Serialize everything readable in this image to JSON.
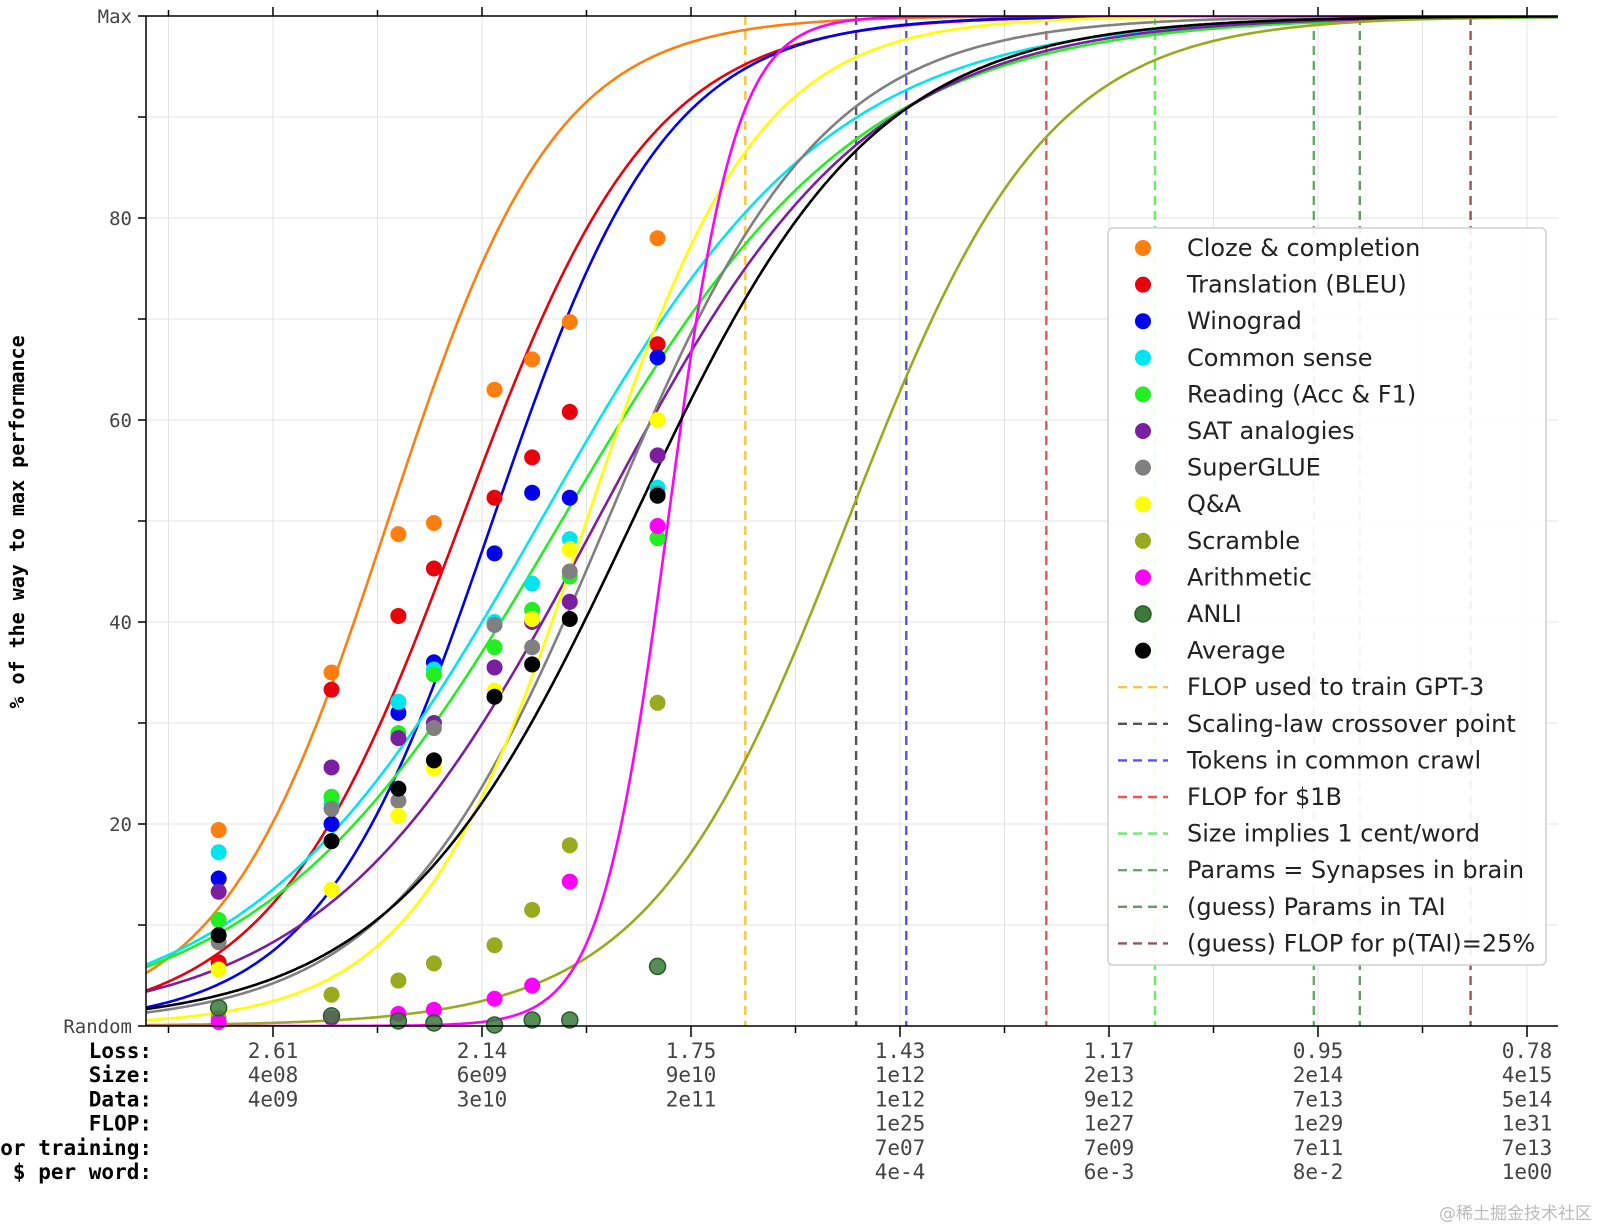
{
  "watermark": "@稀土掘金技术社区",
  "chart_data": {
    "type": "scatter",
    "ylabel": "% of the way to max performance",
    "y_ticks": [
      {
        "value": 0,
        "label": "Random"
      },
      {
        "value": 20,
        "label": "20"
      },
      {
        "value": 40,
        "label": "40"
      },
      {
        "value": 60,
        "label": "60"
      },
      {
        "value": 80,
        "label": "80"
      },
      {
        "value": 100,
        "label": "Max"
      }
    ],
    "ylim": [
      0,
      100
    ],
    "xlim": [
      0,
      6.77
    ],
    "x_axis_note": "x is in units of the labelled tick columns (0 = column '2.61', 1 = '2.14', ...)",
    "row_labels": [
      "Loss:",
      "Size:",
      "Data:",
      "FLOP:",
      "$ for training:",
      "$ per word:"
    ],
    "x_columns": [
      {
        "x": 0,
        "values": [
          "2.61",
          "4e08",
          "4e09",
          "",
          "",
          ""
        ]
      },
      {
        "x": 1,
        "values": [
          "2.14",
          "6e09",
          "3e10",
          "",
          "",
          ""
        ]
      },
      {
        "x": 2,
        "values": [
          "1.75",
          "9e10",
          "2e11",
          "",
          "",
          ""
        ]
      },
      {
        "x": 3,
        "values": [
          "1.43",
          "1e12",
          "1e12",
          "1e25",
          "7e07",
          "4e-4"
        ]
      },
      {
        "x": 4,
        "values": [
          "1.17",
          "2e13",
          "9e12",
          "1e27",
          "7e09",
          "6e-3"
        ]
      },
      {
        "x": 5,
        "values": [
          "0.95",
          "2e14",
          "7e13",
          "1e29",
          "7e11",
          "8e-2"
        ]
      },
      {
        "x": 6,
        "values": [
          "0.78",
          "4e15",
          "5e14",
          "1e31",
          "7e13",
          "1e00"
        ]
      }
    ],
    "x_major_ticks": [
      0,
      1,
      2,
      3,
      4,
      5,
      6
    ],
    "x_minor_ticks": [
      -0.5,
      0.5,
      1.5,
      2.5,
      3.5,
      4.5,
      5.5,
      6.5
    ],
    "series": [
      {
        "name": "Cloze & completion",
        "color": "#ff7f0e",
        "fit": {
          "mid": 0.55,
          "k": 2.5,
          "y0": 0
        },
        "points": [
          [
            -0.26,
            19.4
          ],
          [
            0.28,
            35
          ],
          [
            0.6,
            48.7
          ],
          [
            0.77,
            49.8
          ],
          [
            1.06,
            63
          ],
          [
            1.24,
            66
          ],
          [
            1.42,
            69.7
          ],
          [
            1.84,
            78
          ]
        ]
      },
      {
        "name": "Translation (BLEU)",
        "color": "#e8000b",
        "fit": {
          "mid": 0.9,
          "k": 2.2,
          "y0": 0
        },
        "points": [
          [
            -0.26,
            6.3
          ],
          [
            0.28,
            33.3
          ],
          [
            0.6,
            40.6
          ],
          [
            0.77,
            45.3
          ],
          [
            1.06,
            52.3
          ],
          [
            1.24,
            56.3
          ],
          [
            1.42,
            60.8
          ],
          [
            1.84,
            67.5
          ]
        ]
      },
      {
        "name": "Winograd",
        "color": "#0000ee",
        "fit": {
          "mid": 1.05,
          "k": 2.4,
          "y0": 0
        },
        "points": [
          [
            -0.26,
            14.6
          ],
          [
            0.28,
            20
          ],
          [
            0.6,
            31
          ],
          [
            0.77,
            36
          ],
          [
            1.06,
            46.8
          ],
          [
            1.24,
            52.8
          ],
          [
            1.42,
            52.3
          ],
          [
            1.84,
            66.2
          ]
        ]
      },
      {
        "name": "Common sense",
        "color": "#00e5ee",
        "fit": {
          "mid": 1.28,
          "k": 1.45,
          "y0": 0
        },
        "points": [
          [
            -0.26,
            17.2
          ],
          [
            0.28,
            22
          ],
          [
            0.6,
            32.1
          ],
          [
            0.77,
            35.3
          ],
          [
            1.06,
            40
          ],
          [
            1.24,
            43.8
          ],
          [
            1.42,
            48.2
          ],
          [
            1.84,
            53.3
          ]
        ]
      },
      {
        "name": "Reading (Acc & F1)",
        "color": "#22ee22",
        "fit": {
          "mid": 1.38,
          "k": 1.4,
          "y0": 0
        },
        "points": [
          [
            -0.26,
            10.5
          ],
          [
            0.28,
            22.7
          ],
          [
            0.6,
            29
          ],
          [
            0.77,
            34.8
          ],
          [
            1.06,
            37.5
          ],
          [
            1.24,
            41.2
          ],
          [
            1.42,
            44.5
          ],
          [
            1.84,
            48.3
          ]
        ]
      },
      {
        "name": "SAT analogies",
        "color": "#7b1fa2",
        "fit": {
          "mid": 1.55,
          "k": 1.55,
          "y0": 0
        },
        "points": [
          [
            -0.26,
            13.3
          ],
          [
            0.28,
            25.6
          ],
          [
            0.6,
            28.5
          ],
          [
            0.77,
            30
          ],
          [
            1.06,
            35.5
          ],
          [
            1.24,
            40
          ],
          [
            1.42,
            42
          ],
          [
            1.84,
            56.5
          ]
        ]
      },
      {
        "name": "SuperGLUE",
        "color": "#808080",
        "fit": {
          "mid": 1.6,
          "k": 1.95,
          "y0": 0
        },
        "points": [
          [
            -0.26,
            8.3
          ],
          [
            0.28,
            21.5
          ],
          [
            0.6,
            22.3
          ],
          [
            0.77,
            29.5
          ],
          [
            1.06,
            39.7
          ],
          [
            1.24,
            37.5
          ],
          [
            1.42,
            45
          ],
          [
            1.84,
            52.7
          ]
        ]
      },
      {
        "name": "Q&A",
        "color": "#ffff00",
        "fit": {
          "mid": 1.5,
          "k": 2.45,
          "y0": 0
        },
        "points": [
          [
            -0.26,
            5.6
          ],
          [
            0.28,
            13.5
          ],
          [
            0.6,
            20.8
          ],
          [
            0.77,
            25.5
          ],
          [
            1.06,
            33.2
          ],
          [
            1.24,
            40.3
          ],
          [
            1.42,
            47.2
          ],
          [
            1.84,
            60
          ]
        ]
      },
      {
        "name": "Scramble",
        "color": "#9aaa1e",
        "fit": {
          "mid": 2.75,
          "k": 2.1,
          "y0": 0
        },
        "points": [
          [
            -0.26,
            0.8
          ],
          [
            0.28,
            3.1
          ],
          [
            0.6,
            4.5
          ],
          [
            0.77,
            6.2
          ],
          [
            1.06,
            8
          ],
          [
            1.24,
            11.5
          ],
          [
            1.42,
            17.9
          ],
          [
            1.84,
            32
          ]
        ]
      },
      {
        "name": "Arithmetic",
        "color": "#ff00ff",
        "fit": {
          "mid": 1.89,
          "k": 6.2,
          "y0": 0
        },
        "points": [
          [
            -0.26,
            0.4
          ],
          [
            0.28,
            0.8
          ],
          [
            0.6,
            1.2
          ],
          [
            0.77,
            1.6
          ],
          [
            1.06,
            2.7
          ],
          [
            1.24,
            4
          ],
          [
            1.42,
            14.3
          ],
          [
            1.84,
            49.5
          ]
        ]
      },
      {
        "name": "ANLI",
        "color": "#3a7a3a",
        "fit": null,
        "points": [
          [
            -0.26,
            1.8
          ],
          [
            0.28,
            1
          ],
          [
            0.6,
            0.5
          ],
          [
            0.77,
            0.3
          ],
          [
            1.06,
            0.1
          ],
          [
            1.24,
            0.6
          ],
          [
            1.42,
            0.6
          ],
          [
            1.84,
            5.9
          ]
        ]
      },
      {
        "name": "Average",
        "color": "#000000",
        "fit": {
          "mid": 1.72,
          "k": 1.75,
          "y0": 0
        },
        "points": [
          [
            -0.26,
            9
          ],
          [
            0.28,
            18.3
          ],
          [
            0.6,
            23.5
          ],
          [
            0.77,
            26.3
          ],
          [
            1.06,
            32.6
          ],
          [
            1.24,
            35.8
          ],
          [
            1.42,
            40.3
          ],
          [
            1.84,
            52.5
          ]
        ]
      }
    ],
    "vlines": [
      {
        "name": "FLOP used to train GPT-3",
        "color": "#f5c542",
        "x": 2.26
      },
      {
        "name": "Scaling-law crossover point",
        "color": "#555555",
        "x": 2.79
      },
      {
        "name": "Tokens in common crawl",
        "color": "#5555ee",
        "x": 3.03
      },
      {
        "name": "FLOP for $1B",
        "color": "#ee5555",
        "x": 3.7
      },
      {
        "name": "Size implies 1 cent/word",
        "color": "#66ee66",
        "x": 4.22
      },
      {
        "name": "Params = Synapses in brain",
        "color": "#66aa66",
        "x": 4.98
      },
      {
        "name": "(guess) Params in TAI",
        "color": "#669966",
        "x": 5.2
      },
      {
        "name": "(guess) FLOP for p(TAI)=25%",
        "color": "#995555",
        "x": 5.73
      }
    ],
    "legend_position": "center-right"
  }
}
